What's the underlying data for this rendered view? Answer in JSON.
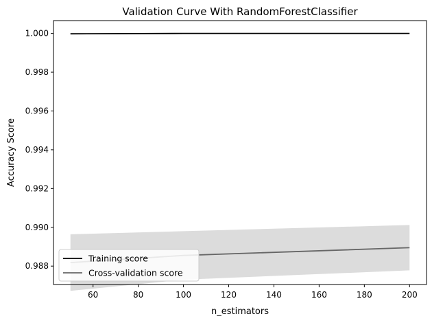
{
  "chart_data": {
    "type": "line",
    "title": "Validation Curve With RandomForestClassifier",
    "xlabel": "n_estimators",
    "ylabel": "Accuracy Score",
    "xlim": [
      42.5,
      207.5
    ],
    "ylim": [
      0.98705,
      1.00066
    ],
    "xticks": [
      60,
      80,
      100,
      120,
      140,
      160,
      180,
      200
    ],
    "yticks": [
      0.988,
      0.99,
      0.992,
      0.994,
      0.996,
      0.998,
      1.0
    ],
    "x": [
      50,
      100,
      200
    ],
    "series": [
      {
        "name": "Training score",
        "values": [
          0.99998,
          1.0,
          1.0
        ],
        "band_lower": [
          0.99998,
          1.0,
          1.0
        ],
        "band_upper": [
          0.99998,
          1.0,
          1.0
        ],
        "color": "#000000"
      },
      {
        "name": "Cross-validation score",
        "values": [
          0.98818,
          0.98855,
          0.98895
        ],
        "band_lower": [
          0.98672,
          0.9873,
          0.98778
        ],
        "band_upper": [
          0.98964,
          0.9898,
          0.99012
        ],
        "color": "#666666",
        "band_color": "#dcdcdc"
      }
    ],
    "grid": false,
    "legend_position": "lower-left"
  }
}
